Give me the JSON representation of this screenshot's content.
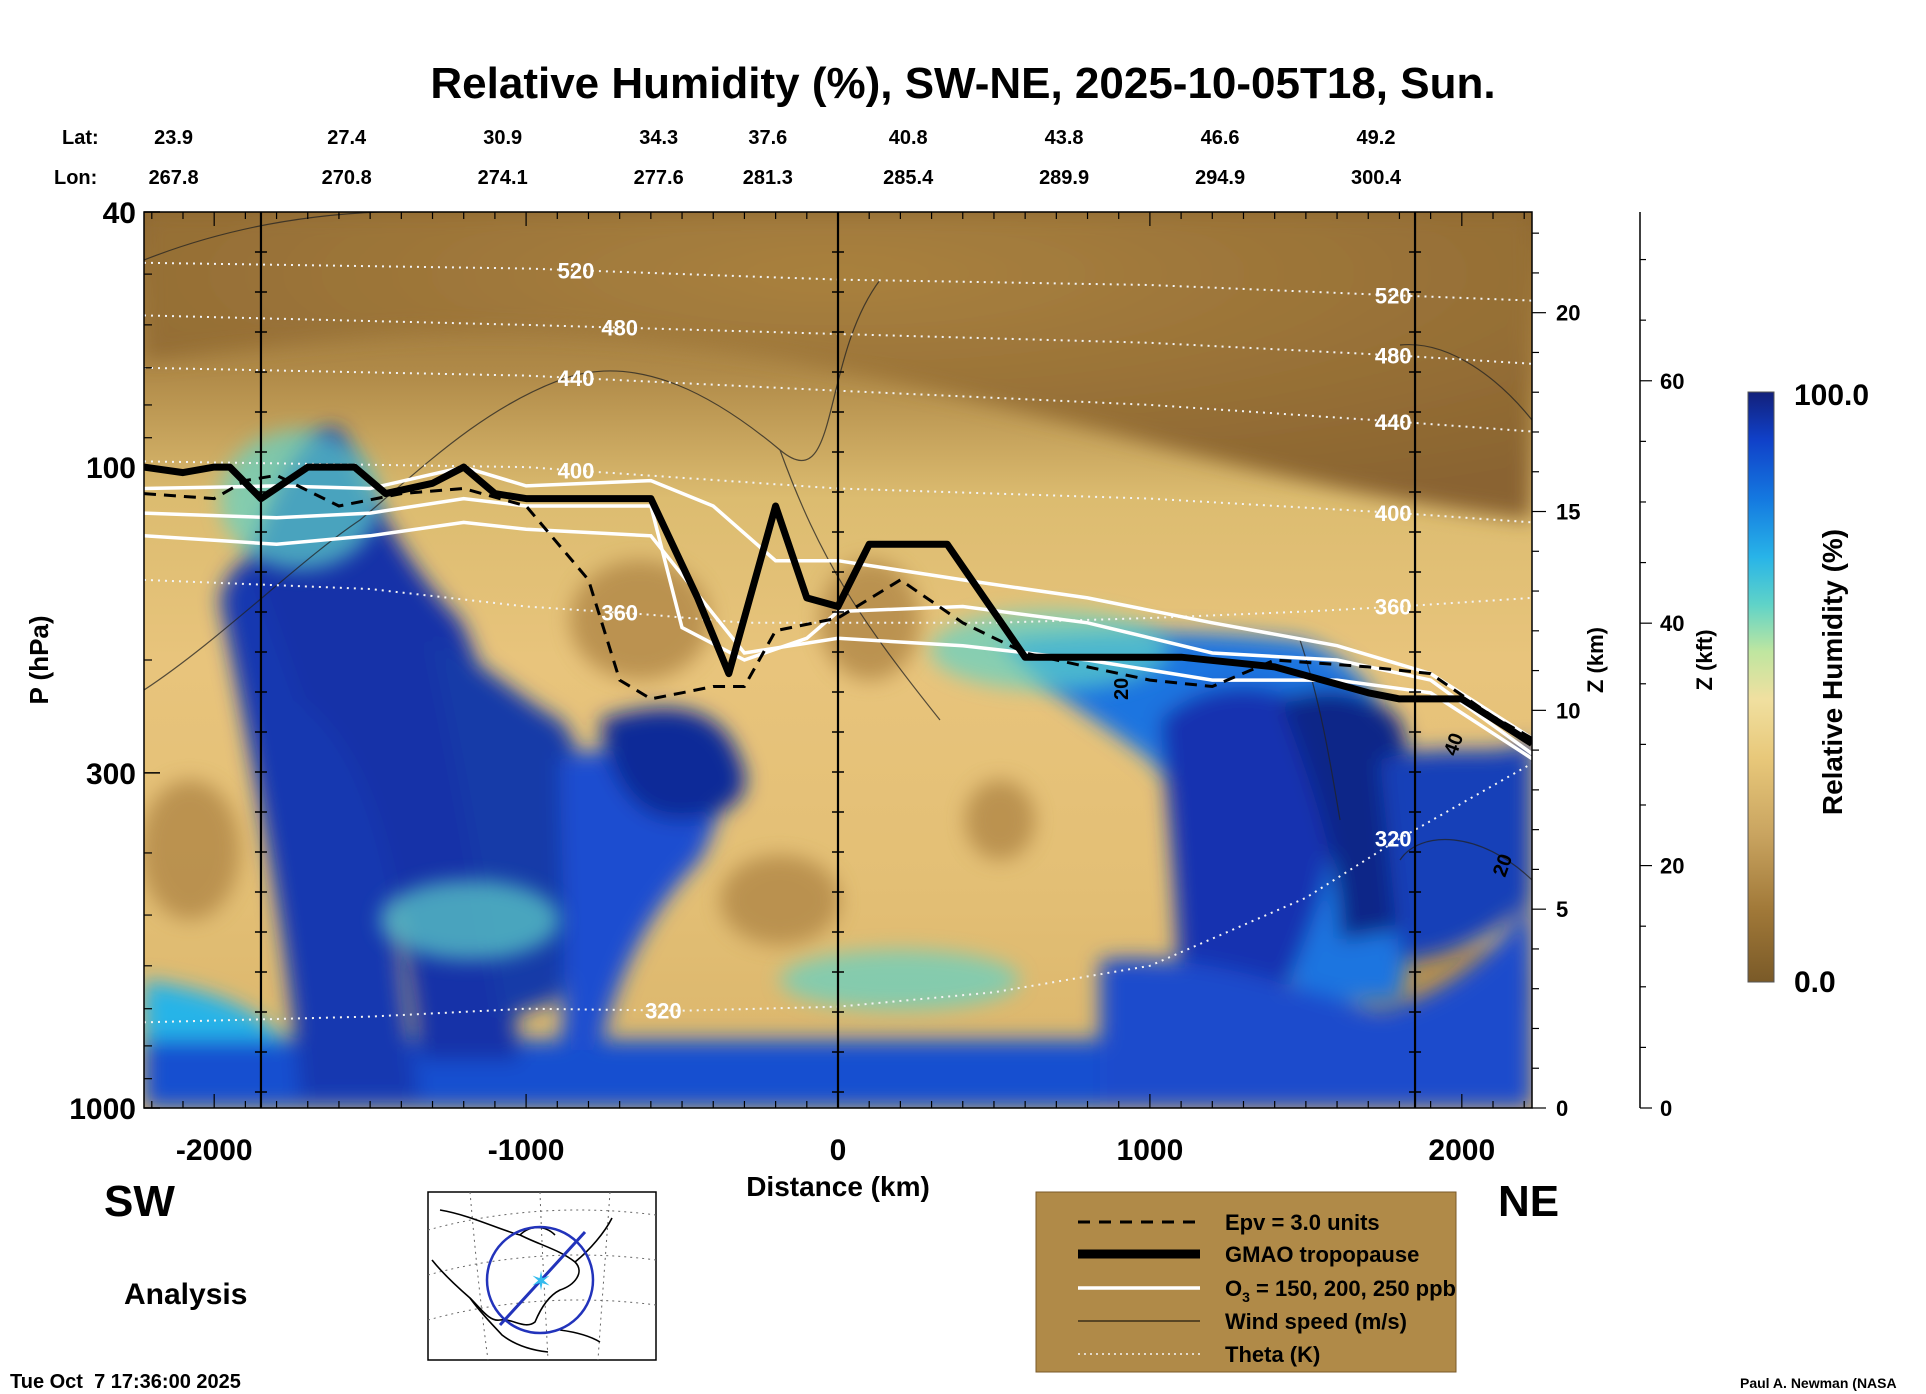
{
  "chart_data": {
    "type": "heatmap",
    "title": "Relative Humidity (%), SW-NE, 2025-10-05T18, Sun.",
    "xlabel": "Distance (km)",
    "ylabel": "P (hPa)",
    "y2label": "Z (km)",
    "y3label": "Z (kft)",
    "xlim": [
      -2225,
      2225
    ],
    "ylim": [
      1000,
      40
    ],
    "y_scale": "log",
    "x_ticks": [
      -2000,
      -1000,
      0,
      1000,
      2000
    ],
    "x_tick_labels": [
      "-2000",
      "-1000",
      "0",
      "1000",
      "2000"
    ],
    "y_ticks": [
      40,
      100,
      300,
      1000
    ],
    "y_tick_labels": [
      "40",
      "100",
      "300",
      "1000"
    ],
    "zkm_ticks": [
      0,
      5,
      10,
      15,
      20
    ],
    "zkm_tick_labels": [
      "0",
      "5",
      "10",
      "15",
      "20"
    ],
    "zkft_ticks": [
      0,
      20,
      40,
      60
    ],
    "zkft_tick_labels": [
      "0",
      "20",
      "40",
      "60"
    ],
    "lat_label": "Lat:",
    "lon_label": "Lon:",
    "lat_values": [
      "23.9",
      "27.4",
      "30.9",
      "34.3",
      "37.6",
      "40.8",
      "43.8",
      "46.6",
      "49.2"
    ],
    "lon_values": [
      "267.8",
      "270.8",
      "274.1",
      "277.6",
      "281.3",
      "285.4",
      "289.9",
      "294.9",
      "300.4"
    ],
    "colorbar": {
      "label": "Relative Humidity (%)",
      "min": 0.0,
      "max": 100.0,
      "min_label": "0.0",
      "max_label": "100.0",
      "colors": [
        "#7a5a28",
        "#a07838",
        "#c9a460",
        "#e8c87a",
        "#f0e0a0",
        "#bfe6a0",
        "#5fd3c8",
        "#28b4e8",
        "#1478e0",
        "#1040c8",
        "#12207a"
      ]
    },
    "theta_isentropes_K": [
      {
        "value": 320,
        "label": "320",
        "x": [
          -2225,
          -1500,
          -1000,
          -500,
          0,
          500,
          1000,
          1500,
          1800,
          2225
        ],
        "p": [
          735,
          720,
          700,
          705,
          695,
          660,
          600,
          470,
          380,
          290
        ]
      },
      {
        "value": 360,
        "label": "360",
        "x": [
          -2225,
          -1500,
          -1000,
          -600,
          -300,
          0,
          500,
          1000,
          1500,
          1800,
          2225
        ],
        "p": [
          150,
          155,
          165,
          170,
          175,
          175,
          175,
          172,
          168,
          165,
          160
        ]
      },
      {
        "value": 400,
        "label": "400",
        "x": [
          -2225,
          -1000,
          0,
          1000,
          1800,
          2225
        ],
        "p": [
          98,
          100,
          108,
          112,
          118,
          122
        ]
      },
      {
        "value": 440,
        "label": "440",
        "x": [
          -2225,
          -1000,
          0,
          1000,
          1800,
          2225
        ],
        "p": [
          70,
          72,
          76,
          80,
          85,
          88
        ]
      },
      {
        "value": 480,
        "label": "480",
        "x": [
          -2225,
          -1000,
          0,
          1000,
          1800,
          2225
        ],
        "p": [
          58,
          60,
          62,
          64,
          67,
          69
        ]
      },
      {
        "value": 520,
        "label": "520",
        "x": [
          -2225,
          -1000,
          0,
          1000,
          1800,
          2225
        ],
        "p": [
          48,
          49,
          51,
          52,
          54,
          55
        ]
      }
    ],
    "gmao_tropopause_hPa": {
      "x": [
        -2225,
        -2100,
        -2000,
        -1950,
        -1850,
        -1700,
        -1550,
        -1450,
        -1300,
        -1200,
        -1100,
        -1000,
        -700,
        -600,
        -450,
        -350,
        -200,
        -100,
        0,
        100,
        350,
        600,
        1100,
        1400,
        1700,
        1800,
        2000,
        2225
      ],
      "p": [
        100,
        102,
        100,
        100,
        112,
        100,
        100,
        110,
        106,
        100,
        110,
        112,
        112,
        112,
        160,
        210,
        115,
        160,
        165,
        132,
        132,
        198,
        198,
        205,
        225,
        230,
        230,
        270
      ]
    },
    "epv_3_hPa": {
      "x": [
        -2225,
        -2000,
        -1900,
        -1800,
        -1600,
        -1400,
        -1200,
        -1000,
        -800,
        -700,
        -600,
        -500,
        -400,
        -300,
        -200,
        0,
        200,
        400,
        600,
        800,
        1000,
        1200,
        1400,
        1700,
        1900,
        2100,
        2225
      ],
      "p": [
        110,
        112,
        105,
        103,
        115,
        110,
        108,
        115,
        150,
        215,
        230,
        225,
        220,
        220,
        180,
        172,
        150,
        175,
        195,
        205,
        215,
        220,
        200,
        205,
        210,
        245,
        265
      ]
    },
    "o3_150_200_250_ppb": [
      {
        "value": 250,
        "x": [
          -2225,
          -1800,
          -1500,
          -1200,
          -1000,
          -600,
          -400,
          -200,
          0,
          400,
          800,
          1200,
          1600,
          1900,
          2225
        ],
        "p": [
          108,
          107,
          108,
          100,
          107,
          105,
          115,
          140,
          140,
          150,
          160,
          175,
          190,
          210,
          265
        ]
      },
      {
        "value": 200,
        "x": [
          -2225,
          -1800,
          -1500,
          -1200,
          -1000,
          -600,
          -500,
          -300,
          -100,
          0,
          400,
          800,
          1200,
          1600,
          1900,
          2225
        ],
        "p": [
          118,
          120,
          118,
          112,
          115,
          115,
          178,
          200,
          185,
          168,
          165,
          175,
          195,
          200,
          215,
          280
        ]
      },
      {
        "value": 150,
        "x": [
          -2225,
          -1800,
          -1500,
          -1200,
          -1000,
          -600,
          -300,
          0,
          400,
          800,
          1200,
          1600,
          1900,
          2225
        ],
        "p": [
          128,
          132,
          128,
          122,
          125,
          128,
          195,
          185,
          190,
          200,
          215,
          215,
          225,
          285
        ]
      }
    ],
    "wind_speed_labels": [
      "20",
      "40",
      "20"
    ]
  },
  "legend": {
    "items": [
      {
        "label": "Epv = 3.0 units",
        "style": "dashed"
      },
      {
        "label": "GMAO tropopause",
        "style": "thick"
      },
      {
        "label": "O",
        "sub": "3",
        "rest": " = 150, 200, 250 ppb",
        "style": "white"
      },
      {
        "label": "Wind speed (m/s)",
        "style": "thin"
      },
      {
        "label": "Theta (K)",
        "style": "dotted"
      }
    ]
  },
  "labels": {
    "sw": "SW",
    "ne": "NE",
    "analysis": "Analysis",
    "timestamp": "Tue Oct  7 17:36:00 2025",
    "credit": "Paul A. Newman (NASA"
  }
}
